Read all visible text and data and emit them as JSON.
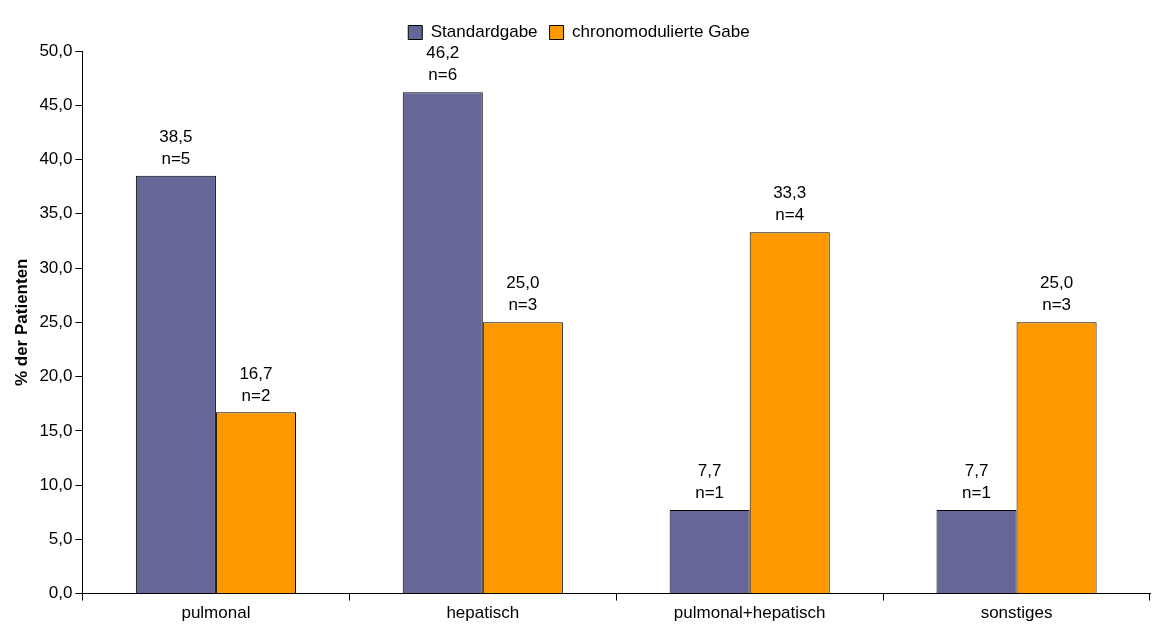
{
  "chart_data": {
    "type": "bar",
    "ylabel": "% der Patienten",
    "categories": [
      "pulmonal",
      "hepatisch",
      "pulmonal+hepatisch",
      "sonstiges"
    ],
    "series": [
      {
        "name": "Standardgabe",
        "color": "#666699",
        "values": [
          38.5,
          46.2,
          7.7,
          7.7
        ],
        "value_labels": [
          "38,5\nn=5",
          "46,2\nn=6",
          "7,7\nn=1",
          "7,7\nn=1"
        ]
      },
      {
        "name": "chronomodulierte Gabe",
        "color": "#ff9900",
        "values": [
          16.7,
          25.0,
          33.3,
          25.0
        ],
        "value_labels": [
          "16,7\nn=2",
          "25,0\nn=3",
          "33,3\nn=4",
          "25,0\nn=3"
        ]
      }
    ],
    "ylim": [
      0,
      50
    ],
    "yticks": [
      {
        "value": 0,
        "label": "0,0"
      },
      {
        "value": 5,
        "label": "5,0"
      },
      {
        "value": 10,
        "label": "10,0"
      },
      {
        "value": 15,
        "label": "15,0"
      },
      {
        "value": 20,
        "label": "20,0"
      },
      {
        "value": 25,
        "label": "25,0"
      },
      {
        "value": 30,
        "label": "30,0"
      },
      {
        "value": 35,
        "label": "35,0"
      },
      {
        "value": 40,
        "label": "40,0"
      },
      {
        "value": 45,
        "label": "45,0"
      },
      {
        "value": 50,
        "label": "50,0"
      }
    ],
    "grid": false,
    "legend": "top"
  }
}
